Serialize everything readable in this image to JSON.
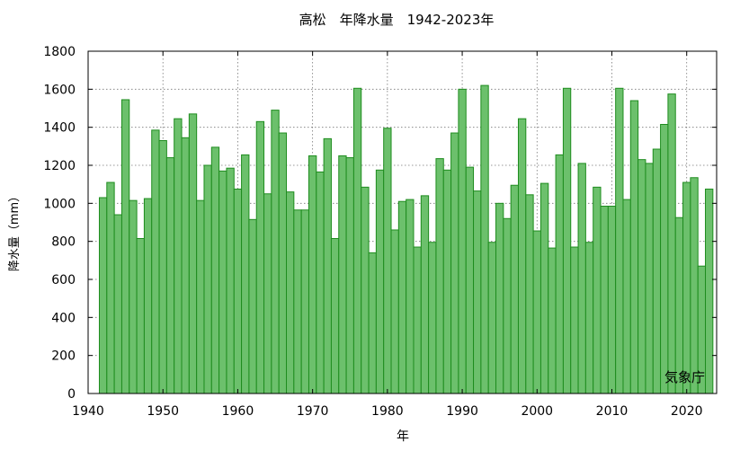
{
  "chart_data": {
    "type": "bar",
    "title": "高松　年降水量　1942-2023年",
    "xlabel": "年",
    "ylabel": "降水量（mm）",
    "credit": "気象庁",
    "xlim": [
      1940,
      2024
    ],
    "ylim": [
      0,
      1800
    ],
    "x_ticks": [
      1940,
      1950,
      1960,
      1970,
      1980,
      1990,
      2000,
      2010,
      2020
    ],
    "y_ticks": [
      0,
      200,
      400,
      600,
      800,
      1000,
      1200,
      1400,
      1600,
      1800
    ],
    "grid": true,
    "bar_color": "#6cc06c",
    "bar_edge_color": "#1e8c1e",
    "x": [
      1942,
      1943,
      1944,
      1945,
      1946,
      1947,
      1948,
      1949,
      1950,
      1951,
      1952,
      1953,
      1954,
      1955,
      1956,
      1957,
      1958,
      1959,
      1960,
      1961,
      1962,
      1963,
      1964,
      1965,
      1966,
      1967,
      1968,
      1969,
      1970,
      1971,
      1972,
      1973,
      1974,
      1975,
      1976,
      1977,
      1978,
      1979,
      1980,
      1981,
      1982,
      1983,
      1984,
      1985,
      1986,
      1987,
      1988,
      1989,
      1990,
      1991,
      1992,
      1993,
      1994,
      1995,
      1996,
      1997,
      1998,
      1999,
      2000,
      2001,
      2002,
      2003,
      2004,
      2005,
      2006,
      2007,
      2008,
      2009,
      2010,
      2011,
      2012,
      2013,
      2014,
      2015,
      2016,
      2017,
      2018,
      2019,
      2020,
      2021,
      2022,
      2023
    ],
    "values": [
      1030,
      1110,
      940,
      1545,
      1015,
      815,
      1025,
      1385,
      1330,
      1240,
      1445,
      1345,
      1470,
      1015,
      1200,
      1295,
      1170,
      1185,
      1075,
      1255,
      915,
      1430,
      1050,
      1490,
      1370,
      1060,
      965,
      965,
      1250,
      1165,
      1340,
      815,
      1250,
      1240,
      1605,
      1085,
      740,
      1175,
      1395,
      860,
      1010,
      1020,
      770,
      1040,
      795,
      1235,
      1175,
      1370,
      1600,
      1190,
      1065,
      1620,
      795,
      1000,
      920,
      1095,
      1445,
      1045,
      855,
      1105,
      765,
      1255,
      1605,
      770,
      1210,
      795,
      1085,
      985,
      985,
      1605,
      1020,
      1540,
      1230,
      1210,
      1285,
      1415,
      1575,
      925,
      1110,
      1135,
      670,
      1075
    ]
  }
}
